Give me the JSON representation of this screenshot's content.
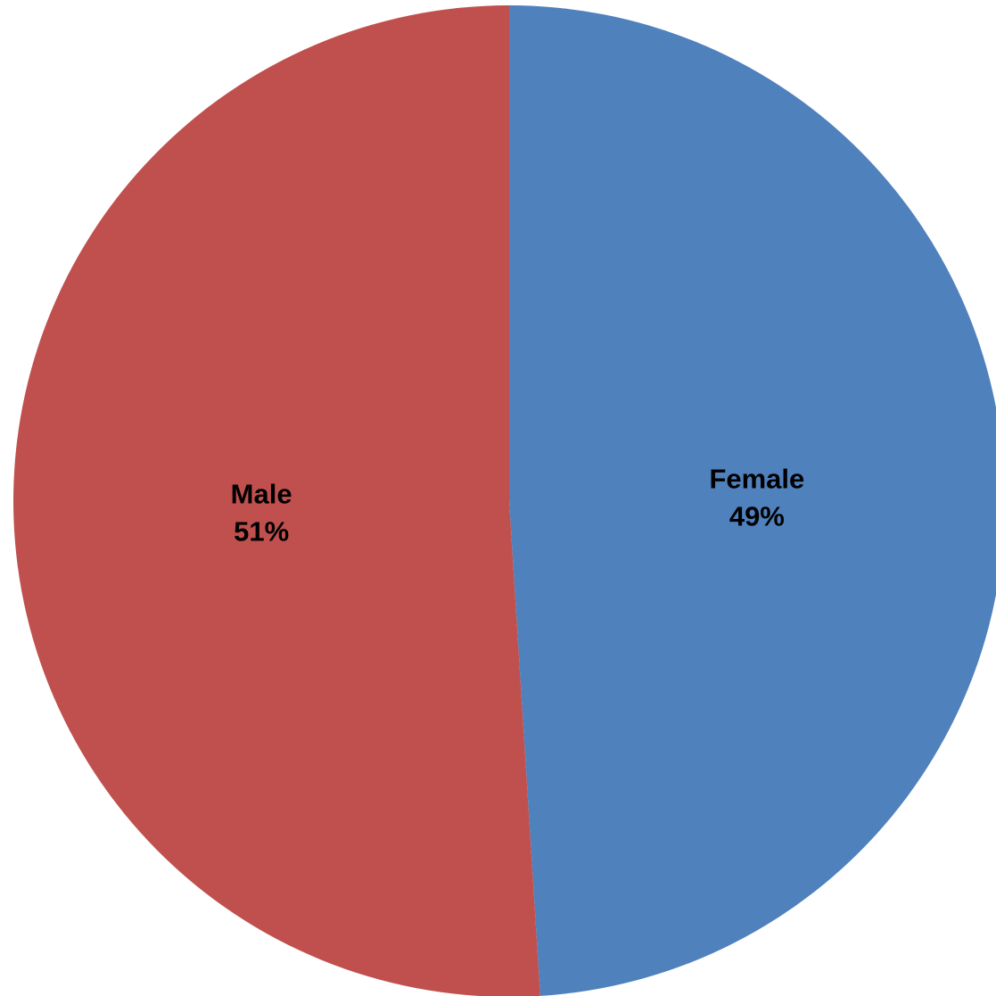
{
  "chart_data": {
    "type": "pie",
    "title": "",
    "start_angle_deg": 0,
    "direction": "clockwise",
    "slices": [
      {
        "name": "Female",
        "value": 49,
        "label": "49%",
        "color": "#4F81BD"
      },
      {
        "name": "Male",
        "value": 51,
        "label": "51%",
        "color": "#C0504D"
      }
    ],
    "legend": "none"
  }
}
